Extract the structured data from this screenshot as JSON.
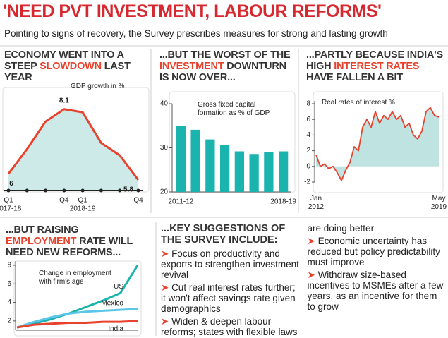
{
  "header": {
    "title": "'NEED PVT INVESTMENT, LABOUR REFORMS'",
    "subtitle": "Pointing to signs of recovery, the Survey prescribes measures for strong and lasting growth"
  },
  "chart_data": [
    {
      "type": "line",
      "title": [
        "ECONOMY WENT INTO A STEEP ",
        "SLOWDOWN",
        " LAST YEAR"
      ],
      "title_highlight": 1,
      "subtitle": "GDP growth in %",
      "categories": [
        "Q1",
        null,
        null,
        "Q4",
        "Q1",
        null,
        null,
        "Q4"
      ],
      "year_labels": [
        "2017-18",
        "2018-19"
      ],
      "values": [
        6,
        6.8,
        7.7,
        8.1,
        8.0,
        7.0,
        6.6,
        5.8
      ],
      "value_labels": [
        "6",
        null,
        null,
        "8.1",
        null,
        null,
        null,
        "5.8"
      ],
      "ylim": [
        5.5,
        8.6
      ],
      "color": "#e8412c",
      "fill": "#cdeae8"
    },
    {
      "type": "bar",
      "title": [
        "...BUT THE WORST OF THE ",
        "INVESTMENT",
        " DOWNTURN IS NOW OVER..."
      ],
      "title_highlight": 1,
      "subtitle": "Gross fixed capital formation as % of GDP",
      "categories": [
        "2011-12",
        null,
        null,
        null,
        null,
        null,
        null,
        "2018-19"
      ],
      "values": [
        34.9,
        34.1,
        31.9,
        30.6,
        29.2,
        28.6,
        29.1,
        29.2
      ],
      "ylim": [
        20,
        40
      ],
      "yticks": [
        20,
        30,
        40
      ],
      "color": "#1bb3ad"
    },
    {
      "type": "area",
      "title": [
        "...PARTLY BECAUSE INDIA'S HIGH ",
        "INTEREST RATES",
        " HAVE FALLEN A BIT"
      ],
      "title_highlight": 1,
      "subtitle": "Real rates of interest %",
      "categories": [
        "Jan 2012",
        null,
        null,
        null,
        null,
        null,
        null,
        null,
        null,
        null,
        null,
        null,
        null,
        null,
        null,
        null,
        null,
        null,
        null,
        null,
        null,
        null,
        null,
        null,
        null,
        null,
        null,
        null,
        null,
        "May 2019"
      ],
      "values": [
        1.5,
        0,
        0.3,
        -0.3,
        0,
        -0.8,
        -1.8,
        -0.5,
        0.5,
        2.5,
        2.0,
        5.0,
        6.0,
        5.0,
        7.0,
        5.5,
        6.5,
        6.0,
        7.0,
        6.0,
        6.5,
        5.0,
        5.5,
        4.0,
        3.5,
        4.5,
        7.0,
        7.5,
        6.5,
        6.3
      ],
      "ylim": [
        -2,
        8
      ],
      "yticks": [
        -2,
        0,
        2,
        4,
        6,
        8
      ],
      "color": "#e8412c",
      "fill": "#bfe3e1"
    },
    {
      "type": "line",
      "title": [
        "...BUT RAISING ",
        "EMPLOYMENT",
        " RATE WILL NEED NEW REFORMS..."
      ],
      "title_highlight": 1,
      "subtitle": "Change in employment with firm's age",
      "categories": [
        null,
        null,
        null,
        null,
        null,
        null,
        null,
        null
      ],
      "series": [
        {
          "name": "US",
          "color": "#1bb3ad",
          "values": [
            1.3,
            1.7,
            2.2,
            2.8,
            3.5,
            4.2,
            5.0,
            8.0
          ]
        },
        {
          "name": "Mexico",
          "color": "#5cc6e8",
          "values": [
            1.3,
            1.9,
            2.4,
            2.8,
            3.0,
            3.1,
            3.2,
            3.3
          ]
        },
        {
          "name": "India",
          "color": "#e8412c",
          "values": [
            1.3,
            1.6,
            1.7,
            1.8,
            1.8,
            1.9,
            1.9,
            2.0
          ]
        }
      ],
      "ylim": [
        1,
        8
      ],
      "yticks": [
        2,
        4,
        6,
        8
      ]
    }
  ],
  "suggestions": {
    "heading": "...KEY SUGGESTIONS OF THE SURVEY INCLUDE:",
    "items": [
      "Focus on productivity and exports to strengthen investment revival",
      "Cut real interest rates further; it won't affect savings rate given demographics",
      "Widen & deepen labour reforms; states with flexible laws are doing better",
      "Economic uncertainty has reduced but policy predictability must improve",
      "Withdraw size-based incentives to MSMEs after a few years, as an incentive for them to grow"
    ]
  }
}
